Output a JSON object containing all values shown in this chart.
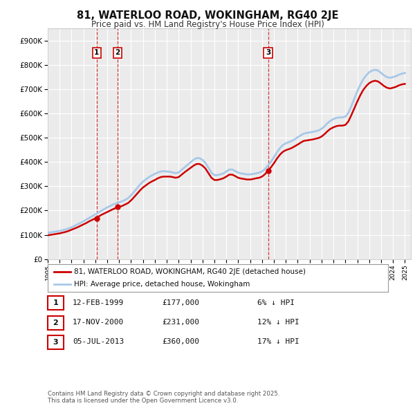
{
  "title": "81, WATERLOO ROAD, WOKINGHAM, RG40 2JE",
  "subtitle": "Price paid vs. HM Land Registry's House Price Index (HPI)",
  "ylim": [
    0,
    950000
  ],
  "yticks": [
    0,
    100000,
    200000,
    300000,
    400000,
    500000,
    600000,
    700000,
    800000,
    900000
  ],
  "ytick_labels": [
    "£0",
    "£100K",
    "£200K",
    "£300K",
    "£400K",
    "£500K",
    "£600K",
    "£700K",
    "£800K",
    "£900K"
  ],
  "background_color": "#ffffff",
  "plot_bg_color": "#ebebeb",
  "grid_color": "#ffffff",
  "line_color_hpi": "#a8c8e8",
  "line_color_price": "#cc0000",
  "legend_label_price": "81, WATERLOO ROAD, WOKINGHAM, RG40 2JE (detached house)",
  "legend_label_hpi": "HPI: Average price, detached house, Wokingham",
  "transactions": [
    {
      "num": 1,
      "date": "12-FEB-1999",
      "price": 177000,
      "hpi_diff": "6% ↓ HPI",
      "year": 1999.11
    },
    {
      "num": 2,
      "date": "17-NOV-2000",
      "price": 231000,
      "hpi_diff": "12% ↓ HPI",
      "year": 2000.88
    },
    {
      "num": 3,
      "date": "05-JUL-2013",
      "price": 360000,
      "hpi_diff": "17% ↓ HPI",
      "year": 2013.51
    }
  ],
  "footer": "Contains HM Land Registry data © Crown copyright and database right 2025.\nThis data is licensed under the Open Government Licence v3.0.",
  "hpi_data_x": [
    1995.0,
    1995.25,
    1995.5,
    1995.75,
    1996.0,
    1996.25,
    1996.5,
    1996.75,
    1997.0,
    1997.25,
    1997.5,
    1997.75,
    1998.0,
    1998.25,
    1998.5,
    1998.75,
    1999.0,
    1999.25,
    1999.5,
    1999.75,
    2000.0,
    2000.25,
    2000.5,
    2000.75,
    2001.0,
    2001.25,
    2001.5,
    2001.75,
    2002.0,
    2002.25,
    2002.5,
    2002.75,
    2003.0,
    2003.25,
    2003.5,
    2003.75,
    2004.0,
    2004.25,
    2004.5,
    2004.75,
    2005.0,
    2005.25,
    2005.5,
    2005.75,
    2006.0,
    2006.25,
    2006.5,
    2006.75,
    2007.0,
    2007.25,
    2007.5,
    2007.75,
    2008.0,
    2008.25,
    2008.5,
    2008.75,
    2009.0,
    2009.25,
    2009.5,
    2009.75,
    2010.0,
    2010.25,
    2010.5,
    2010.75,
    2011.0,
    2011.25,
    2011.5,
    2011.75,
    2012.0,
    2012.25,
    2012.5,
    2012.75,
    2013.0,
    2013.25,
    2013.5,
    2013.75,
    2014.0,
    2014.25,
    2014.5,
    2014.75,
    2015.0,
    2015.25,
    2015.5,
    2015.75,
    2016.0,
    2016.25,
    2016.5,
    2016.75,
    2017.0,
    2017.25,
    2017.5,
    2017.75,
    2018.0,
    2018.25,
    2018.5,
    2018.75,
    2019.0,
    2019.25,
    2019.5,
    2019.75,
    2020.0,
    2020.25,
    2020.5,
    2020.75,
    2021.0,
    2021.25,
    2021.5,
    2021.75,
    2022.0,
    2022.25,
    2022.5,
    2022.75,
    2023.0,
    2023.25,
    2023.5,
    2023.75,
    2024.0,
    2024.25,
    2024.5,
    2024.75,
    2025.0
  ],
  "hpi_data_y": [
    108000,
    110000,
    112000,
    114000,
    116000,
    119000,
    122000,
    126000,
    131000,
    137000,
    143000,
    149000,
    156000,
    163000,
    170000,
    177000,
    184000,
    192000,
    199000,
    206000,
    213000,
    219000,
    225000,
    230000,
    234000,
    238000,
    244000,
    251000,
    263000,
    277000,
    292000,
    307000,
    319000,
    329000,
    338000,
    345000,
    351000,
    357000,
    361000,
    362000,
    361000,
    360000,
    357000,
    354000,
    357000,
    368000,
    378000,
    389000,
    399000,
    409000,
    416000,
    416000,
    409000,
    396000,
    376000,
    356000,
    346000,
    346000,
    349000,
    353000,
    361000,
    369000,
    369000,
    363000,
    356000,
    353000,
    351000,
    349000,
    349000,
    351000,
    353000,
    356000,
    361000,
    371000,
    386000,
    401000,
    420000,
    440000,
    457000,
    470000,
    477000,
    482000,
    487000,
    494000,
    502000,
    510000,
    517000,
    520000,
    522000,
    524000,
    527000,
    530000,
    537000,
    547000,
    560000,
    570000,
    577000,
    582000,
    584000,
    584000,
    587000,
    602000,
    630000,
    661000,
    691000,
    718000,
    741000,
    757000,
    770000,
    777000,
    780000,
    777000,
    767000,
    757000,
    750000,
    747000,
    750000,
    754000,
    760000,
    764000,
    767000
  ],
  "price_data_x": [
    1995.0,
    1995.25,
    1995.5,
    1995.75,
    1996.0,
    1996.25,
    1996.5,
    1996.75,
    1997.0,
    1997.25,
    1997.5,
    1997.75,
    1998.0,
    1998.25,
    1998.5,
    1998.75,
    1999.0,
    1999.25,
    1999.5,
    1999.75,
    2000.0,
    2000.25,
    2000.5,
    2000.75,
    2001.0,
    2001.25,
    2001.5,
    2001.75,
    2002.0,
    2002.25,
    2002.5,
    2002.75,
    2003.0,
    2003.25,
    2003.5,
    2003.75,
    2004.0,
    2004.25,
    2004.5,
    2004.75,
    2005.0,
    2005.25,
    2005.5,
    2005.75,
    2006.0,
    2006.25,
    2006.5,
    2006.75,
    2007.0,
    2007.25,
    2007.5,
    2007.75,
    2008.0,
    2008.25,
    2008.5,
    2008.75,
    2009.0,
    2009.25,
    2009.5,
    2009.75,
    2010.0,
    2010.25,
    2010.5,
    2010.75,
    2011.0,
    2011.25,
    2011.5,
    2011.75,
    2012.0,
    2012.25,
    2012.5,
    2012.75,
    2013.0,
    2013.25,
    2013.5,
    2013.75,
    2014.0,
    2014.25,
    2014.5,
    2014.75,
    2015.0,
    2015.25,
    2015.5,
    2015.75,
    2016.0,
    2016.25,
    2016.5,
    2016.75,
    2017.0,
    2017.25,
    2017.5,
    2017.75,
    2018.0,
    2018.25,
    2018.5,
    2018.75,
    2019.0,
    2019.25,
    2019.5,
    2019.75,
    2020.0,
    2020.25,
    2020.5,
    2020.75,
    2021.0,
    2021.25,
    2021.5,
    2021.75,
    2022.0,
    2022.25,
    2022.5,
    2022.75,
    2023.0,
    2023.25,
    2023.5,
    2023.75,
    2024.0,
    2024.25,
    2024.5,
    2024.75,
    2025.0
  ],
  "price_data_y": [
    98000,
    100000,
    102000,
    104000,
    106000,
    109000,
    112000,
    116000,
    121000,
    126000,
    131000,
    137000,
    143000,
    149000,
    156000,
    162000,
    168000,
    175000,
    182000,
    188000,
    194000,
    200000,
    206000,
    211000,
    215000,
    219000,
    225000,
    231000,
    242000,
    255000,
    269000,
    283000,
    295000,
    304000,
    313000,
    320000,
    326000,
    333000,
    338000,
    340000,
    340000,
    340000,
    338000,
    335000,
    338000,
    348000,
    358000,
    367000,
    376000,
    385000,
    392000,
    392000,
    385000,
    373000,
    354000,
    335000,
    326000,
    326000,
    329000,
    333000,
    340000,
    348000,
    348000,
    342000,
    335000,
    332000,
    330000,
    328000,
    328000,
    330000,
    333000,
    335000,
    340000,
    350000,
    364000,
    378000,
    395000,
    414000,
    430000,
    442000,
    449000,
    453000,
    458000,
    465000,
    472000,
    480000,
    487000,
    489000,
    491000,
    493000,
    496000,
    499000,
    505000,
    515000,
    527000,
    537000,
    543000,
    548000,
    550000,
    550000,
    553000,
    567000,
    593000,
    621000,
    649000,
    675000,
    697000,
    713000,
    725000,
    732000,
    735000,
    732000,
    723000,
    713000,
    706000,
    703000,
    706000,
    710000,
    716000,
    720000,
    722000
  ]
}
